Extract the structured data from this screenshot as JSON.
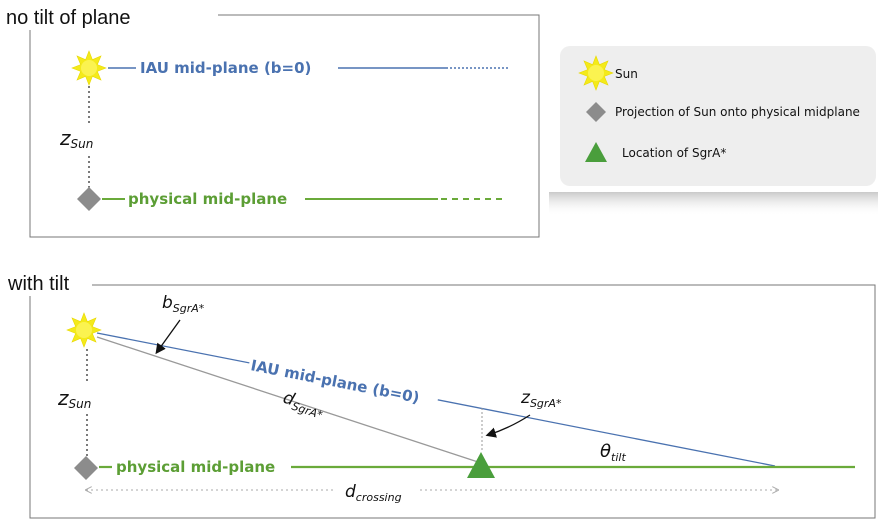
{
  "panel_top": {
    "title": "no tilt of plane",
    "iau_label": "IAU mid-plane (b=0)",
    "z_sun_base": "z",
    "z_sun_sub": "Sun",
    "physical_label": "physical mid-plane"
  },
  "legend": {
    "items": [
      {
        "icon": "sun-icon",
        "label": "Sun"
      },
      {
        "icon": "diamond-icon",
        "label": "Projection of Sun onto physical midplane"
      },
      {
        "icon": "triangle-icon",
        "label": "Location of SgrA*"
      }
    ]
  },
  "panel_bottom": {
    "title": "with tilt",
    "b_base": "b",
    "b_sub": "SgrA*",
    "iau_label": "IAU mid-plane (b=0)",
    "z_sun_base": "z",
    "z_sun_sub": "Sun",
    "d_base": "d",
    "d_sub": "SgrA*",
    "z_sgra_base": "z",
    "z_sgra_sub": "SgrA*",
    "theta_base": "θ",
    "theta_sub": "tilt",
    "physical_label": "physical mid-plane",
    "d_crossing_base": "d",
    "d_crossing_sub": "crossing"
  },
  "colors": {
    "blue": "#4a72b0",
    "green": "#6aaa3a",
    "sun": "#f4ea1a",
    "diamond": "#8c8c8c",
    "triangle": "#4a9e3c"
  }
}
